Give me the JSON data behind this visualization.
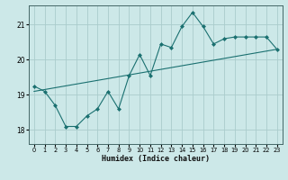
{
  "title": "",
  "xlabel": "Humidex (Indice chaleur)",
  "ylabel": "",
  "background_color": "#cce8e8",
  "line_color": "#1a7070",
  "grid_color": "#aacccc",
  "xlim": [
    -0.5,
    23.5
  ],
  "ylim": [
    17.6,
    21.55
  ],
  "yticks": [
    18,
    19,
    20,
    21
  ],
  "xticks": [
    0,
    1,
    2,
    3,
    4,
    5,
    6,
    7,
    8,
    9,
    10,
    11,
    12,
    13,
    14,
    15,
    16,
    17,
    18,
    19,
    20,
    21,
    22,
    23
  ],
  "line1_x": [
    0,
    1,
    2,
    3,
    4,
    5,
    6,
    7,
    8,
    9,
    10,
    11,
    12,
    13,
    14,
    15,
    16,
    17,
    18,
    19,
    20,
    21,
    22,
    23
  ],
  "line1_y": [
    19.25,
    19.1,
    18.7,
    18.1,
    18.1,
    18.4,
    18.6,
    19.1,
    18.6,
    19.55,
    20.15,
    19.55,
    20.45,
    20.35,
    20.95,
    21.35,
    20.95,
    20.45,
    20.6,
    20.65,
    20.65,
    20.65,
    20.65,
    20.3
  ],
  "trend_x": [
    0,
    23
  ],
  "trend_y": [
    19.1,
    20.3
  ]
}
